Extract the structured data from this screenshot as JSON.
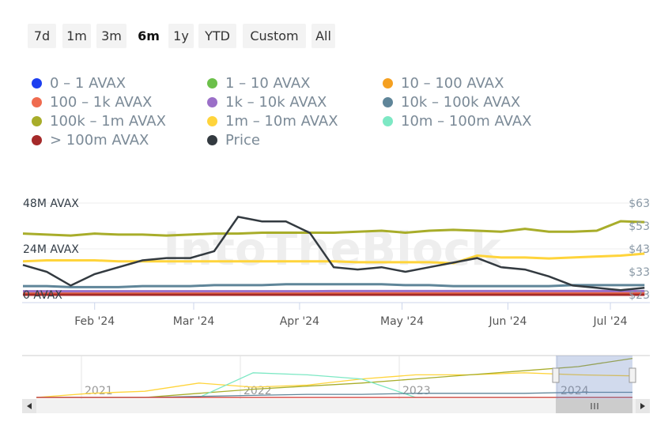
{
  "range_buttons": [
    "7d",
    "1m",
    "3m",
    "6m",
    "1y",
    "YTD",
    "Custom",
    "All"
  ],
  "active_range": "6m",
  "legend": [
    {
      "label": "0 – 1 AVAX",
      "color": "#1d3ff0"
    },
    {
      "label": "1 – 10 AVAX",
      "color": "#6cc04a"
    },
    {
      "label": "10 – 100 AVAX",
      "color": "#f5a020"
    },
    {
      "label": "100 – 1k AVAX",
      "color": "#ef6b4f"
    },
    {
      "label": "1k – 10k AVAX",
      "color": "#9b6fc8"
    },
    {
      "label": "10k – 100k AVAX",
      "color": "#5f8599"
    },
    {
      "label": "100k – 1m AVAX",
      "color": "#a8ad2a"
    },
    {
      "label": "1m – 10m AVAX",
      "color": "#ffd43b"
    },
    {
      "label": "10m – 100m AVAX",
      "color": "#7de8c4"
    },
    {
      "label": "> 100m AVAX",
      "color": "#a52a2a"
    },
    {
      "label": "Price",
      "color": "#333a40"
    }
  ],
  "watermark": "IntoTheBlock",
  "chart_data": {
    "type": "line",
    "x_unit": "days since Jan 11 2024 (weekly)",
    "x": [
      0,
      7,
      14,
      21,
      28,
      35,
      42,
      49,
      56,
      63,
      70,
      77,
      84,
      91,
      98,
      105,
      112,
      119,
      126,
      133,
      140,
      147,
      154,
      161,
      168,
      175,
      182
    ],
    "y_left_ticks": [
      "0 AVAX",
      "24M AVAX",
      "48M AVAX"
    ],
    "y_left_range": [
      0,
      48
    ],
    "y_right_ticks": [
      "$23",
      "$33",
      "$43",
      "$53",
      "$63"
    ],
    "y_right_range": [
      23,
      63
    ],
    "x_ticks": [
      {
        "label": "Feb '24",
        "day": 21
      },
      {
        "label": "Mar '24",
        "day": 50
      },
      {
        "label": "Apr '24",
        "day": 81
      },
      {
        "label": "May '24",
        "day": 111
      },
      {
        "label": "Jun '24",
        "day": 142
      },
      {
        "label": "Jul '24",
        "day": 172
      }
    ],
    "series": [
      {
        "name": "0 – 1 AVAX",
        "axis": "left",
        "values": [
          0.05,
          0.05,
          0.05,
          0.05,
          0.05,
          0.05,
          0.05,
          0.05,
          0.05,
          0.05,
          0.05,
          0.05,
          0.05,
          0.05,
          0.05,
          0.05,
          0.05,
          0.05,
          0.05,
          0.05,
          0.05,
          0.05,
          0.05,
          0.05,
          0.05,
          0.05,
          0.05
        ]
      },
      {
        "name": "1 – 10 AVAX",
        "axis": "left",
        "values": [
          0.4,
          0.4,
          0.4,
          0.4,
          0.4,
          0.4,
          0.4,
          0.4,
          0.4,
          0.4,
          0.4,
          0.4,
          0.4,
          0.4,
          0.4,
          0.4,
          0.4,
          0.4,
          0.4,
          0.4,
          0.4,
          0.4,
          0.4,
          0.4,
          0.4,
          0.4,
          0.4
        ]
      },
      {
        "name": "10 – 100 AVAX",
        "axis": "left",
        "values": [
          0.9,
          0.9,
          0.9,
          0.9,
          0.9,
          0.9,
          0.9,
          0.9,
          0.9,
          0.9,
          0.9,
          0.9,
          0.9,
          0.9,
          0.9,
          0.9,
          0.9,
          0.9,
          0.9,
          0.9,
          0.9,
          0.9,
          0.9,
          0.9,
          0.9,
          0.9,
          0.9
        ]
      },
      {
        "name": "100 – 1k AVAX",
        "axis": "left",
        "values": [
          1.3,
          1.3,
          1.3,
          1.3,
          1.3,
          1.3,
          1.3,
          1.3,
          1.3,
          1.3,
          1.3,
          1.3,
          1.3,
          1.3,
          1.3,
          1.3,
          1.3,
          1.3,
          1.3,
          1.3,
          1.3,
          1.3,
          1.3,
          1.3,
          1.3,
          1.3,
          1.3
        ]
      },
      {
        "name": "1k – 10k AVAX",
        "axis": "left",
        "values": [
          1.8,
          1.8,
          1.8,
          1.8,
          1.8,
          1.8,
          1.8,
          1.8,
          1.8,
          1.8,
          1.8,
          1.8,
          1.8,
          1.9,
          1.9,
          1.9,
          1.9,
          1.9,
          1.9,
          1.9,
          1.9,
          1.9,
          1.9,
          1.9,
          1.9,
          1.9,
          1.9
        ]
      },
      {
        "name": "10k – 100k AVAX",
        "axis": "left",
        "values": [
          4.5,
          4.5,
          4.0,
          4.0,
          4.0,
          4.5,
          4.5,
          4.5,
          5.0,
          5.0,
          5.0,
          5.5,
          5.5,
          5.5,
          5.5,
          5.5,
          5.0,
          5.0,
          4.5,
          4.5,
          4.5,
          4.5,
          4.5,
          5.0,
          5.0,
          5.0,
          5.0
        ]
      },
      {
        "name": "100k – 1m AVAX",
        "axis": "left",
        "values": [
          32.0,
          31.5,
          31.0,
          32.0,
          31.5,
          31.5,
          31.0,
          31.5,
          32.0,
          32.0,
          32.5,
          32.5,
          32.5,
          32.5,
          33.0,
          33.5,
          32.5,
          33.5,
          34.0,
          33.5,
          33.0,
          34.5,
          33.0,
          33.0,
          33.5,
          38.5,
          38.0
        ]
      },
      {
        "name": "1m – 10m AVAX",
        "axis": "left",
        "values": [
          17.5,
          18.0,
          18.0,
          18.0,
          17.5,
          17.5,
          17.5,
          17.5,
          17.5,
          17.5,
          17.5,
          17.5,
          17.5,
          17.5,
          17.0,
          17.0,
          17.0,
          17.0,
          16.5,
          20.5,
          19.5,
          19.5,
          19.0,
          19.5,
          20.0,
          20.5,
          21.5
        ]
      },
      {
        "name": "10m – 100m AVAX",
        "axis": "left",
        "values": [
          0,
          0,
          0,
          0,
          0,
          0,
          0,
          0,
          0,
          0,
          0,
          0,
          0,
          0,
          0,
          0,
          0,
          0,
          0,
          0,
          0,
          0,
          0,
          0,
          0,
          0,
          0
        ]
      },
      {
        "name": "> 100m AVAX",
        "axis": "left",
        "values": [
          0,
          0,
          0,
          0,
          0,
          0,
          0,
          0,
          0,
          0,
          0,
          0,
          0,
          0,
          0,
          0,
          0,
          0,
          0,
          0,
          0,
          0,
          0,
          0,
          0,
          0,
          0
        ]
      },
      {
        "name": "Price",
        "axis": "right",
        "values": [
          36,
          33,
          27,
          32,
          35,
          38,
          39,
          39,
          42,
          57,
          55,
          55,
          50,
          35,
          34,
          35,
          33,
          35,
          37,
          39,
          35,
          34,
          31,
          27,
          26,
          25,
          26
        ]
      }
    ],
    "navigator": {
      "year_labels": [
        "2021",
        "2022",
        "2023",
        "2024"
      ],
      "series": [
        {
          "name": "1m – 10m AVAX",
          "values": [
            0,
            4,
            6,
            14,
            10,
            12,
            18,
            22,
            22,
            24,
            22,
            21
          ]
        },
        {
          "name": "100k – 1m AVAX",
          "values": [
            0,
            0,
            0,
            4,
            8,
            11,
            14,
            18,
            22,
            26,
            30,
            38
          ]
        },
        {
          "name": "10m – 100m AVAX",
          "values": [
            0,
            0,
            0,
            0,
            24,
            22,
            18,
            0,
            0,
            0,
            0,
            0
          ]
        },
        {
          "name": "10k – 100k AVAX",
          "values": [
            0,
            0,
            0,
            1,
            2,
            3,
            3,
            4,
            4,
            4,
            5,
            5
          ]
        }
      ]
    }
  }
}
